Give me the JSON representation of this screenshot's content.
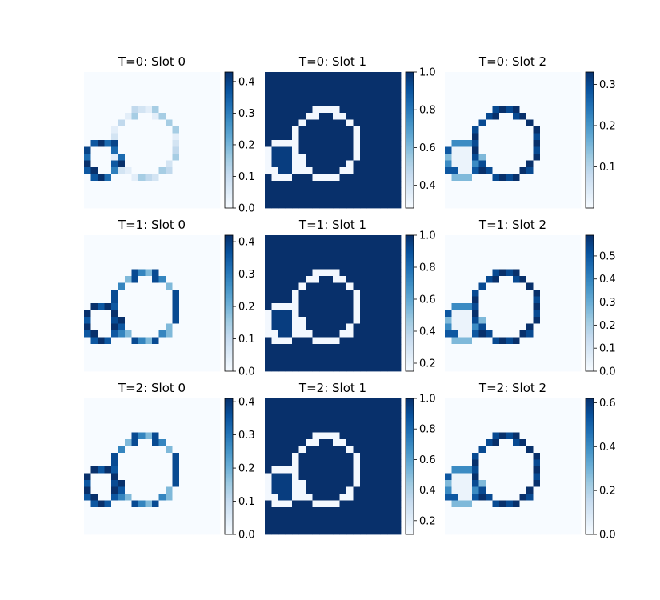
{
  "figure": {
    "description_type": "grid of heatmaps with colorbars",
    "rows": 3,
    "cols": 3,
    "colormap": "Blues",
    "colors": {
      "low": "#f7fbff",
      "high": "#08306b"
    }
  },
  "chart_data": [
    {
      "type": "heatmap",
      "title": "T=0: Slot 0",
      "row": 0,
      "col": 0,
      "grid": 20,
      "colorbar": {
        "min": 0.0,
        "max": 0.43,
        "ticks": [
          "0.0",
          "0.1",
          "0.2",
          "0.3",
          "0.4"
        ],
        "tick_values": [
          0,
          0.1,
          0.2,
          0.3,
          0.4
        ]
      },
      "pattern": "slot0_t0"
    },
    {
      "type": "heatmap",
      "title": "T=0: Slot 1",
      "row": 0,
      "col": 1,
      "grid": 20,
      "colorbar": {
        "min": 0.28,
        "max": 1.0,
        "ticks": [
          "0.4",
          "0.6",
          "0.8",
          "1.0"
        ],
        "tick_values": [
          0.4,
          0.6,
          0.8,
          1.0
        ]
      },
      "pattern": "slot1"
    },
    {
      "type": "heatmap",
      "title": "T=0: Slot 2",
      "row": 0,
      "col": 2,
      "grid": 20,
      "colorbar": {
        "min": 0.0,
        "max": 0.33,
        "ticks": [
          "0.1",
          "0.2",
          "0.3"
        ],
        "tick_values": [
          0.1,
          0.2,
          0.3
        ]
      },
      "pattern": "slot2"
    },
    {
      "type": "heatmap",
      "title": "T=1: Slot 0",
      "row": 1,
      "col": 0,
      "grid": 20,
      "colorbar": {
        "min": 0.0,
        "max": 0.42,
        "ticks": [
          "0.0",
          "0.1",
          "0.2",
          "0.3",
          "0.4"
        ],
        "tick_values": [
          0,
          0.1,
          0.2,
          0.3,
          0.4
        ]
      },
      "pattern": "slot0"
    },
    {
      "type": "heatmap",
      "title": "T=1: Slot 1",
      "row": 1,
      "col": 1,
      "grid": 20,
      "colorbar": {
        "min": 0.15,
        "max": 1.0,
        "ticks": [
          "0.2",
          "0.4",
          "0.6",
          "0.8",
          "1.0"
        ],
        "tick_values": [
          0.2,
          0.4,
          0.6,
          0.8,
          1.0
        ]
      },
      "pattern": "slot1"
    },
    {
      "type": "heatmap",
      "title": "T=1: Slot 2",
      "row": 1,
      "col": 2,
      "grid": 20,
      "colorbar": {
        "min": 0.0,
        "max": 0.59,
        "ticks": [
          "0.0",
          "0.1",
          "0.2",
          "0.3",
          "0.4",
          "0.5"
        ],
        "tick_values": [
          0,
          0.1,
          0.2,
          0.3,
          0.4,
          0.5
        ]
      },
      "pattern": "slot2"
    },
    {
      "type": "heatmap",
      "title": "T=2: Slot 0",
      "row": 2,
      "col": 0,
      "grid": 20,
      "colorbar": {
        "min": 0.0,
        "max": 0.41,
        "ticks": [
          "0.0",
          "0.1",
          "0.2",
          "0.3",
          "0.4"
        ],
        "tick_values": [
          0,
          0.1,
          0.2,
          0.3,
          0.4
        ]
      },
      "pattern": "slot0"
    },
    {
      "type": "heatmap",
      "title": "T=2: Slot 1",
      "row": 2,
      "col": 1,
      "grid": 20,
      "colorbar": {
        "min": 0.11,
        "max": 1.0,
        "ticks": [
          "0.2",
          "0.4",
          "0.6",
          "0.8",
          "1.0"
        ],
        "tick_values": [
          0.2,
          0.4,
          0.6,
          0.8,
          1.0
        ]
      },
      "pattern": "slot1"
    },
    {
      "type": "heatmap",
      "title": "T=2: Slot 2",
      "row": 2,
      "col": 2,
      "grid": 20,
      "colorbar": {
        "min": 0.0,
        "max": 0.62,
        "ticks": [
          "0.0",
          "0.2",
          "0.4",
          "0.6"
        ],
        "tick_values": [
          0,
          0.2,
          0.4,
          0.6
        ]
      },
      "pattern": "slot2"
    }
  ]
}
